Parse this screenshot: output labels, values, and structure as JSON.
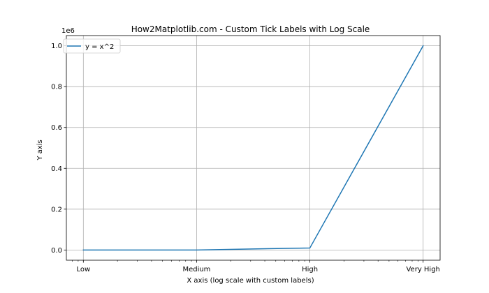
{
  "chart_data": {
    "type": "line",
    "title": "How2Matplotlib.com - Custom Tick Labels with Log Scale",
    "xlabel": "X axis (log scale with custom labels)",
    "ylabel": "Y axis",
    "x_scale": "log",
    "y_scale": "linear",
    "y_offset_text": "1e6",
    "x_ticks": [
      {
        "value": 1,
        "label": "Low"
      },
      {
        "value": 10,
        "label": "Medium"
      },
      {
        "value": 100,
        "label": "High"
      },
      {
        "value": 1000,
        "label": "Very High"
      }
    ],
    "y_ticks": [
      {
        "value": 0,
        "label": "0.0"
      },
      {
        "value": 200000,
        "label": "0.2"
      },
      {
        "value": 400000,
        "label": "0.4"
      },
      {
        "value": 600000,
        "label": "0.6"
      },
      {
        "value": 800000,
        "label": "0.8"
      },
      {
        "value": 1000000,
        "label": "1.0"
      }
    ],
    "xlim": [
      0.708,
      1412
    ],
    "ylim": [
      -50000,
      1050000
    ],
    "grid": true,
    "legend_position": "upper-left",
    "series": [
      {
        "name": "y = x^2",
        "color": "#1f77b4",
        "x": [
          1,
          10,
          100,
          1000
        ],
        "y": [
          1,
          100,
          10000,
          1000000
        ]
      }
    ]
  }
}
